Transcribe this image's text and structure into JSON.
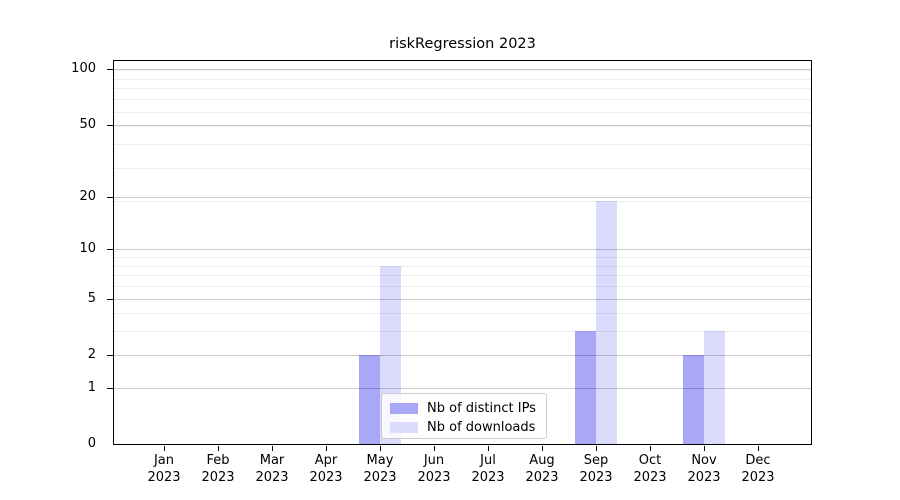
{
  "title": "riskRegression 2023",
  "colors": {
    "distinct_ips_bar": "rgba(0,0,230,0.34)",
    "downloads_bar": "rgba(0,0,230,0.14)",
    "distinct_ips_swatch": "#a8a8f6",
    "downloads_swatch": "#dbdbfb",
    "grid_major": "#cbcbcb",
    "grid_minor": "#ededed",
    "axis": "#000000",
    "background": "#ffffff"
  },
  "legend": {
    "items": [
      {
        "label": "Nb of distinct IPs",
        "series_key": "distinct_ips"
      },
      {
        "label": "Nb of downloads",
        "series_key": "downloads"
      }
    ]
  },
  "chart_data": {
    "type": "bar",
    "title": "riskRegression 2023",
    "categories": [
      "Jan",
      "Feb",
      "Mar",
      "Apr",
      "May",
      "Jun",
      "Jul",
      "Aug",
      "Sep",
      "Oct",
      "Nov",
      "Dec"
    ],
    "category_year": "2023",
    "series": [
      {
        "name": "Nb of distinct IPs",
        "key": "distinct_ips",
        "values": [
          0,
          0,
          0,
          0,
          2,
          0,
          0,
          0,
          3,
          0,
          2,
          0
        ]
      },
      {
        "name": "Nb of downloads",
        "key": "downloads",
        "values": [
          0,
          0,
          0,
          0,
          8,
          0,
          0,
          0,
          19,
          0,
          3,
          0
        ]
      }
    ],
    "xlabel": "",
    "ylabel": "",
    "yscale": "log1p",
    "yticks": [
      0,
      1,
      2,
      5,
      10,
      20,
      50,
      100
    ],
    "ylim": [
      0,
      114
    ],
    "grid": true,
    "legend_position": "bottom-center-inside"
  }
}
